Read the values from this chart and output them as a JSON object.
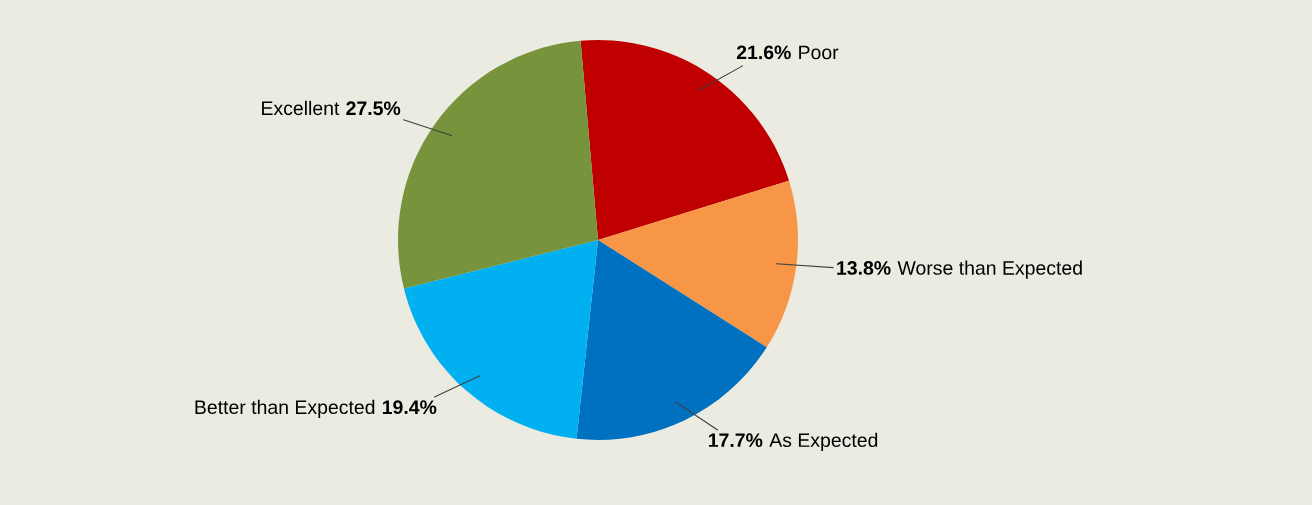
{
  "chart_data": {
    "type": "pie",
    "categories": [
      "Poor",
      "Worse than Expected",
      "As Expected",
      "Better than Expected",
      "Excellent"
    ],
    "values": [
      21.6,
      13.8,
      17.7,
      19.4,
      27.5
    ],
    "value_labels": [
      "21.6%",
      "13.8%",
      "17.7%",
      "19.4%",
      "27.5%"
    ],
    "colors": [
      "#c00000",
      "#f79646",
      "#0070c0",
      "#00b0f0",
      "#77933c"
    ],
    "legend": false
  }
}
